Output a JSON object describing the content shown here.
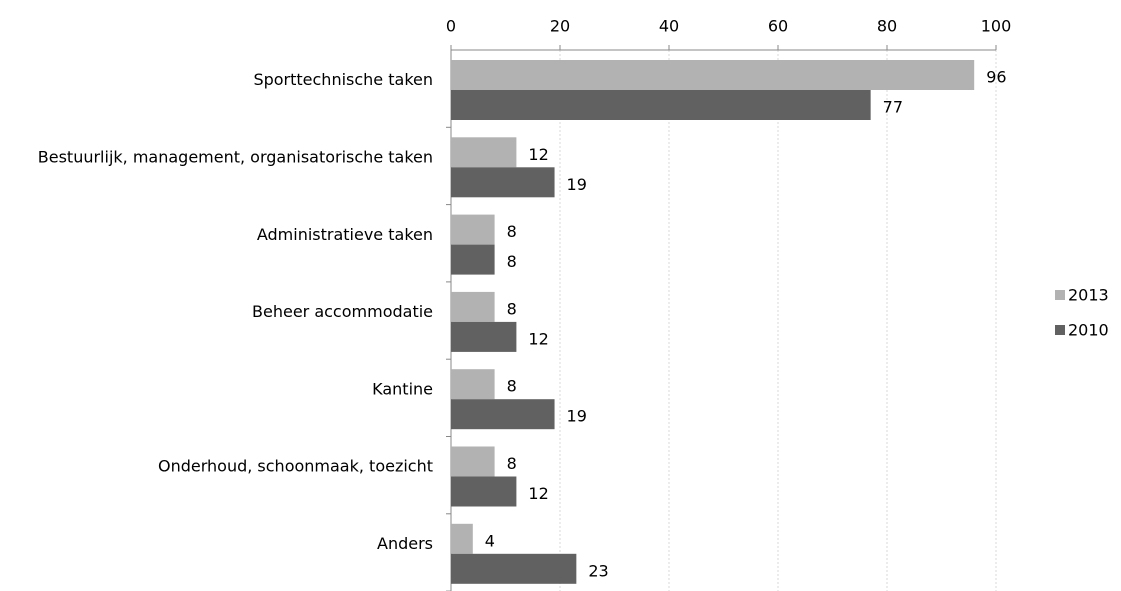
{
  "chart_data": {
    "type": "barh",
    "categories": [
      "Sporttechnische taken",
      "Bestuurlijk, management, organisatorische taken",
      "Administratieve taken",
      "Beheer accommodatie",
      "Kantine",
      "Onderhoud, schoonmaak, toezicht",
      "Anders"
    ],
    "series": [
      {
        "name": "2013",
        "color": "#b2b2b2",
        "values": [
          96,
          12,
          8,
          8,
          8,
          8,
          4
        ]
      },
      {
        "name": "2010",
        "color": "#616161",
        "values": [
          77,
          19,
          8,
          12,
          19,
          12,
          23
        ]
      }
    ],
    "xlim": [
      0,
      100
    ],
    "xticks": [
      0,
      20,
      40,
      60,
      80,
      100
    ],
    "grid": true,
    "legend": "right"
  }
}
